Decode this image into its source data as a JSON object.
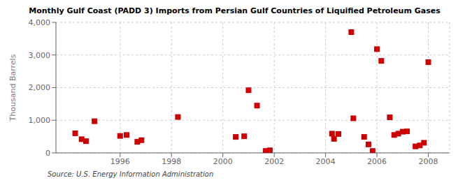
{
  "chart_data": {
    "type": "scatter",
    "title": "Monthly Gulf Coast (PADD 3) Imports from Persian Gulf Countries of Liquified Petroleum Gases",
    "ylabel": "Thousand Barrels",
    "annotation": "Source: U.S. Energy Information Administration",
    "x": [
      1994.25,
      1994.5,
      1994.67,
      1995.0,
      1996.0,
      1996.25,
      1996.67,
      1996.83,
      1998.25,
      2000.5,
      2000.83,
      2001.0,
      2001.33,
      2001.67,
      2001.83,
      2004.25,
      2004.33,
      2004.5,
      2005.0,
      2005.08,
      2005.5,
      2005.67,
      2005.83,
      2006.0,
      2006.17,
      2006.5,
      2006.67,
      2006.83,
      2007.0,
      2007.17,
      2007.5,
      2007.67,
      2007.83,
      2008.0
    ],
    "values": [
      600,
      420,
      360,
      970,
      520,
      550,
      340,
      390,
      1100,
      490,
      510,
      1920,
      1450,
      60,
      80,
      590,
      430,
      580,
      3700,
      1060,
      490,
      260,
      60,
      3180,
      2820,
      1090,
      550,
      590,
      650,
      660,
      200,
      230,
      310,
      2780
    ],
    "color": "#cc0000",
    "marker": "square",
    "xlim": [
      1993.5,
      2008.83
    ],
    "xticks": [
      1996,
      1998,
      2000,
      2002,
      2004,
      2006,
      2008
    ],
    "ylim": [
      0,
      4000
    ],
    "yticks": [
      0,
      {
        "value": 1000,
        "label": "1,000"
      },
      {
        "value": 2000,
        "label": "2,000"
      },
      {
        "value": 3000,
        "label": "3,000"
      },
      {
        "value": 4000,
        "label": "4,000"
      }
    ],
    "grid": true
  }
}
